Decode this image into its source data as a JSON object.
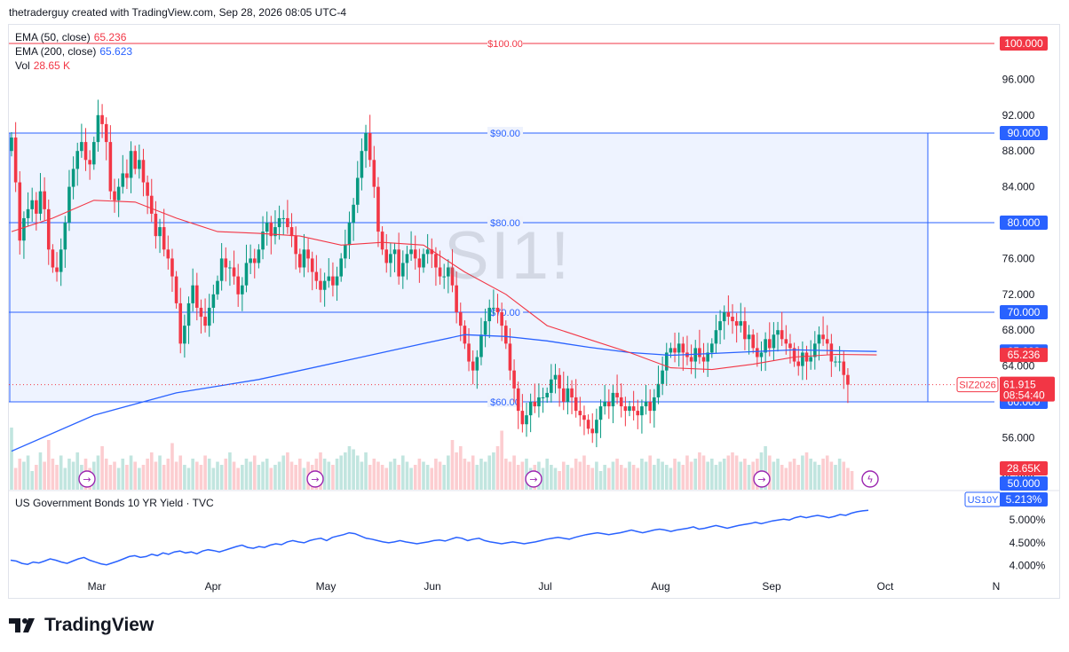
{
  "header": {
    "text": "thetraderguy created with TradingView.com, Sep 28, 2026 08:05 UTC-4"
  },
  "watermark": "SI1!",
  "legend": [
    {
      "name": "EMA (50, close)",
      "value": "65.236",
      "color": "#f23645"
    },
    {
      "name": "EMA (200, close)",
      "value": "65.623",
      "color": "#2962ff"
    },
    {
      "name": "Vol",
      "value": "28.65 K",
      "color": "#f23645"
    }
  ],
  "pane2": {
    "title": "US Government Bonds 10 YR Yield · TVC",
    "badge": "US10Y",
    "value": "5.213%"
  },
  "footer": {
    "brand": "TradingView"
  },
  "colors": {
    "up": "#089981",
    "down": "#f23645",
    "ema50": "#f23645",
    "ema200": "#2962ff",
    "zone": "#2962ff",
    "bond": "#2962ff"
  },
  "chart_data": [
    {
      "type": "candlestick",
      "symbol": "SIZ2026",
      "y_ticks": [
        "96.000",
        "92.000",
        "88.000",
        "84.000",
        "80.000",
        "76.000",
        "72.000",
        "68.000",
        "64.000",
        "60.000",
        "56.000",
        "52.000"
      ],
      "ylim": [
        48.5,
        99
      ],
      "x_labels": [
        "Mar",
        "Apr",
        "May",
        "Jun",
        "Jul",
        "Aug",
        "Sep",
        "Oct",
        "N"
      ],
      "horizontal_lines": [
        {
          "label": "$100.00",
          "price": 100,
          "axis_label": "100.000",
          "color": "#f23645"
        },
        {
          "label": "$90.00",
          "price": 90,
          "axis_label": "90.000",
          "color": "#2962ff"
        },
        {
          "label": "$80.00",
          "price": 80,
          "axis_label": "80.000",
          "color": "#2962ff"
        },
        {
          "label": "$70.00",
          "price": 70,
          "axis_label": "70.000",
          "color": "#2962ff"
        },
        {
          "label": "$60.00",
          "price": 60,
          "axis_label": "60.000",
          "color": "#2962ff"
        }
      ],
      "zone": {
        "top": 90,
        "bottom": 60
      },
      "last_price": {
        "symbol": "SIZ2026",
        "value": "61.915",
        "countdown": "08:54:40"
      },
      "indicator_labels": [
        {
          "value": "65.623",
          "price": 65.623,
          "color": "#2962ff"
        },
        {
          "value": "65.236",
          "price": 65.236,
          "color": "#f23645"
        }
      ],
      "volume_label": {
        "value": "28.65K",
        "color": "#f23645"
      },
      "volume_axis_label": "50.000",
      "closes": [
        89.5,
        84.5,
        78,
        80.5,
        81.5,
        82.5,
        81,
        83.5,
        81.5,
        77,
        75,
        74.5,
        77,
        80,
        84,
        86,
        88,
        89,
        87,
        86.5,
        89,
        92,
        91,
        89,
        83.5,
        82.5,
        84,
        85.5,
        85,
        88,
        86,
        87,
        84.5,
        83,
        81,
        78.5,
        79.5,
        77,
        76,
        74,
        71,
        66.5,
        68.5,
        71,
        73,
        70.5,
        69.5,
        68.5,
        70.5,
        72,
        73.5,
        76,
        75,
        75,
        74,
        72,
        73,
        75.5,
        76,
        75.5,
        77,
        79,
        80,
        78.5,
        79.5,
        80.5,
        80.5,
        79.5,
        78.5,
        76.5,
        75,
        77,
        76,
        74.5,
        73.5,
        72.5,
        73.5,
        74,
        73,
        74,
        76,
        77.5,
        80,
        82,
        85,
        88,
        90,
        87,
        84,
        79,
        77,
        75.5,
        76.5,
        77,
        74,
        75.5,
        76.5,
        77,
        76,
        75,
        76.5,
        77,
        76.5,
        75,
        74,
        74,
        75,
        73,
        70,
        68.5,
        66.5,
        64.5,
        63.5,
        65,
        67.5,
        69,
        70.5,
        70.5,
        70,
        68.5,
        66.5,
        63.5,
        61.5,
        59,
        57.5,
        58.5,
        60,
        59.5,
        60.5,
        60.5,
        61,
        62.5,
        63,
        61.5,
        60,
        61.5,
        60.5,
        59,
        58.5,
        58,
        57,
        56.5,
        58,
        59.5,
        60,
        59.5,
        61,
        60.5,
        59.5,
        59,
        59.5,
        59,
        58.5,
        59.5,
        60,
        59,
        60.5,
        62,
        63.5,
        65.5,
        66,
        65.5,
        66.5,
        65.5,
        65,
        64.5,
        66,
        65,
        64.5,
        65.5,
        66.5,
        68,
        69,
        70,
        69.5,
        69,
        68.5,
        69,
        67,
        67.5,
        66,
        65,
        65.5,
        67,
        66,
        67.5,
        68,
        67,
        66.5,
        66,
        64.5,
        64,
        65.5,
        64.5,
        65,
        66.5,
        67.5,
        67,
        66.5,
        64.5,
        64.5,
        64.5,
        63,
        61.915
      ],
      "ema50": [
        [
          0,
          79
        ],
        [
          10,
          80.5
        ],
        [
          20,
          82.5
        ],
        [
          30,
          82.3
        ],
        [
          40,
          80.5
        ],
        [
          50,
          79
        ],
        [
          60,
          78.8
        ],
        [
          70,
          78.5
        ],
        [
          80,
          77.5
        ],
        [
          90,
          77.8
        ],
        [
          100,
          77.5
        ],
        [
          110,
          74.5
        ],
        [
          120,
          72
        ],
        [
          130,
          68.5
        ],
        [
          140,
          67
        ],
        [
          150,
          65.5
        ],
        [
          160,
          63.8
        ],
        [
          170,
          63.6
        ],
        [
          180,
          64.2
        ],
        [
          190,
          65
        ],
        [
          200,
          65.3
        ],
        [
          210,
          65.236
        ]
      ],
      "ema200": [
        [
          0,
          54.5
        ],
        [
          20,
          58.5
        ],
        [
          40,
          61
        ],
        [
          60,
          62.5
        ],
        [
          80,
          64.5
        ],
        [
          100,
          66.5
        ],
        [
          110,
          67.5
        ],
        [
          120,
          67.3
        ],
        [
          130,
          66.8
        ],
        [
          140,
          66.1
        ],
        [
          150,
          65.5
        ],
        [
          160,
          65.2
        ],
        [
          170,
          65.4
        ],
        [
          180,
          65.6
        ],
        [
          190,
          65.8
        ],
        [
          200,
          65.7
        ],
        [
          210,
          65.623
        ]
      ],
      "volume_relative": [
        1.0,
        0.35,
        0.5,
        0.45,
        0.55,
        0.3,
        0.4,
        0.6,
        0.45,
        0.8,
        0.5,
        0.4,
        0.55,
        0.35,
        0.5,
        0.45,
        0.6,
        0.4,
        0.5,
        0.35,
        0.45,
        0.55,
        0.7,
        0.5,
        0.4,
        0.45,
        0.35,
        0.5,
        0.4,
        0.55,
        0.45,
        0.35,
        0.4,
        0.5,
        0.6,
        0.45,
        0.55,
        0.4,
        0.5,
        0.75,
        0.45,
        0.55,
        0.4,
        0.35,
        0.5,
        0.45,
        0.4,
        0.55,
        0.5,
        0.35,
        0.45,
        0.4,
        0.5,
        0.6,
        0.45,
        0.35,
        0.4,
        0.5,
        0.45,
        0.55,
        0.4,
        0.45,
        0.5,
        0.35,
        0.4,
        0.45,
        0.55,
        0.6,
        0.45,
        0.4,
        0.5,
        0.35,
        0.45,
        0.4,
        0.5,
        0.6,
        0.5,
        0.45,
        0.4,
        0.5,
        0.55,
        0.6,
        0.7,
        0.65,
        0.55,
        0.45,
        0.6,
        0.4,
        0.5,
        0.45,
        0.4,
        0.35,
        0.45,
        0.5,
        0.4,
        0.55,
        0.45,
        0.35,
        0.4,
        0.5,
        0.45,
        0.4,
        0.35,
        0.5,
        0.45,
        0.4,
        0.55,
        0.8,
        0.6,
        0.7,
        0.5,
        0.45,
        0.55,
        0.4,
        0.5,
        0.45,
        0.55,
        0.6,
        0.7,
        0.95,
        0.5,
        0.45,
        0.55,
        0.4,
        0.45,
        0.5,
        0.35,
        0.4,
        0.45,
        0.35,
        0.5,
        0.4,
        0.35,
        0.3,
        0.45,
        0.4,
        0.35,
        0.5,
        0.45,
        0.55,
        0.4,
        0.35,
        0.45,
        0.3,
        0.4,
        0.35,
        0.45,
        0.5,
        0.4,
        0.35,
        0.45,
        0.4,
        0.35,
        0.5,
        0.45,
        0.55,
        0.4,
        0.5,
        0.45,
        0.4,
        0.35,
        0.5,
        0.45,
        0.4,
        0.55,
        0.45,
        0.5,
        0.6,
        0.55,
        0.45,
        0.5,
        0.4,
        0.45,
        0.5,
        0.55,
        0.6,
        0.55,
        0.45,
        0.5,
        0.4,
        0.45,
        0.5,
        0.6,
        0.7,
        0.55,
        0.45,
        0.5,
        0.4,
        0.35,
        0.45,
        0.5,
        0.4,
        0.55,
        0.6,
        0.5,
        0.45,
        0.4,
        0.5,
        0.55,
        0.45,
        0.4,
        0.5,
        0.45,
        0.35,
        0.3
      ]
    },
    {
      "type": "line",
      "name": "US Government Bonds 10 YR Yield · TVC",
      "y_ticks": [
        "5.000%",
        "4.500%",
        "4.000%"
      ],
      "ylim": [
        3.8,
        5.45
      ],
      "values": [
        4.12,
        4.1,
        4.05,
        4.03,
        4.08,
        4.06,
        4.1,
        4.15,
        4.12,
        4.08,
        4.05,
        4.1,
        4.15,
        4.18,
        4.12,
        4.08,
        4.04,
        4.02,
        4.06,
        4.1,
        4.15,
        4.2,
        4.22,
        4.18,
        4.2,
        4.25,
        4.22,
        4.28,
        4.25,
        4.3,
        4.32,
        4.28,
        4.3,
        4.26,
        4.32,
        4.35,
        4.33,
        4.3,
        4.34,
        4.38,
        4.42,
        4.45,
        4.4,
        4.38,
        4.42,
        4.4,
        4.45,
        4.48,
        4.46,
        4.52,
        4.55,
        4.52,
        4.5,
        4.55,
        4.58,
        4.6,
        4.55,
        4.62,
        4.65,
        4.68,
        4.72,
        4.7,
        4.65,
        4.6,
        4.58,
        4.55,
        4.52,
        4.5,
        4.52,
        4.55,
        4.52,
        4.5,
        4.48,
        4.5,
        4.52,
        4.55,
        4.56,
        4.54,
        4.58,
        4.62,
        4.6,
        4.55,
        4.58,
        4.6,
        4.55,
        4.52,
        4.5,
        4.48,
        4.5,
        4.52,
        4.5,
        4.48,
        4.5,
        4.52,
        4.55,
        4.58,
        4.6,
        4.62,
        4.6,
        4.58,
        4.62,
        4.65,
        4.68,
        4.7,
        4.72,
        4.7,
        4.68,
        4.7,
        4.72,
        4.75,
        4.78,
        4.75,
        4.72,
        4.75,
        4.78,
        4.8,
        4.78,
        4.75,
        4.78,
        4.8,
        4.82,
        4.85,
        4.8,
        4.82,
        4.85,
        4.88,
        4.85,
        4.82,
        4.85,
        4.88,
        4.9,
        4.92,
        4.95,
        4.92,
        4.95,
        4.98,
        5.0,
        5.02,
        5.0,
        5.05,
        5.08,
        5.05,
        5.08,
        5.1,
        5.08,
        5.05,
        5.08,
        5.12,
        5.1,
        5.15,
        5.18,
        5.2,
        5.213
      ]
    }
  ]
}
